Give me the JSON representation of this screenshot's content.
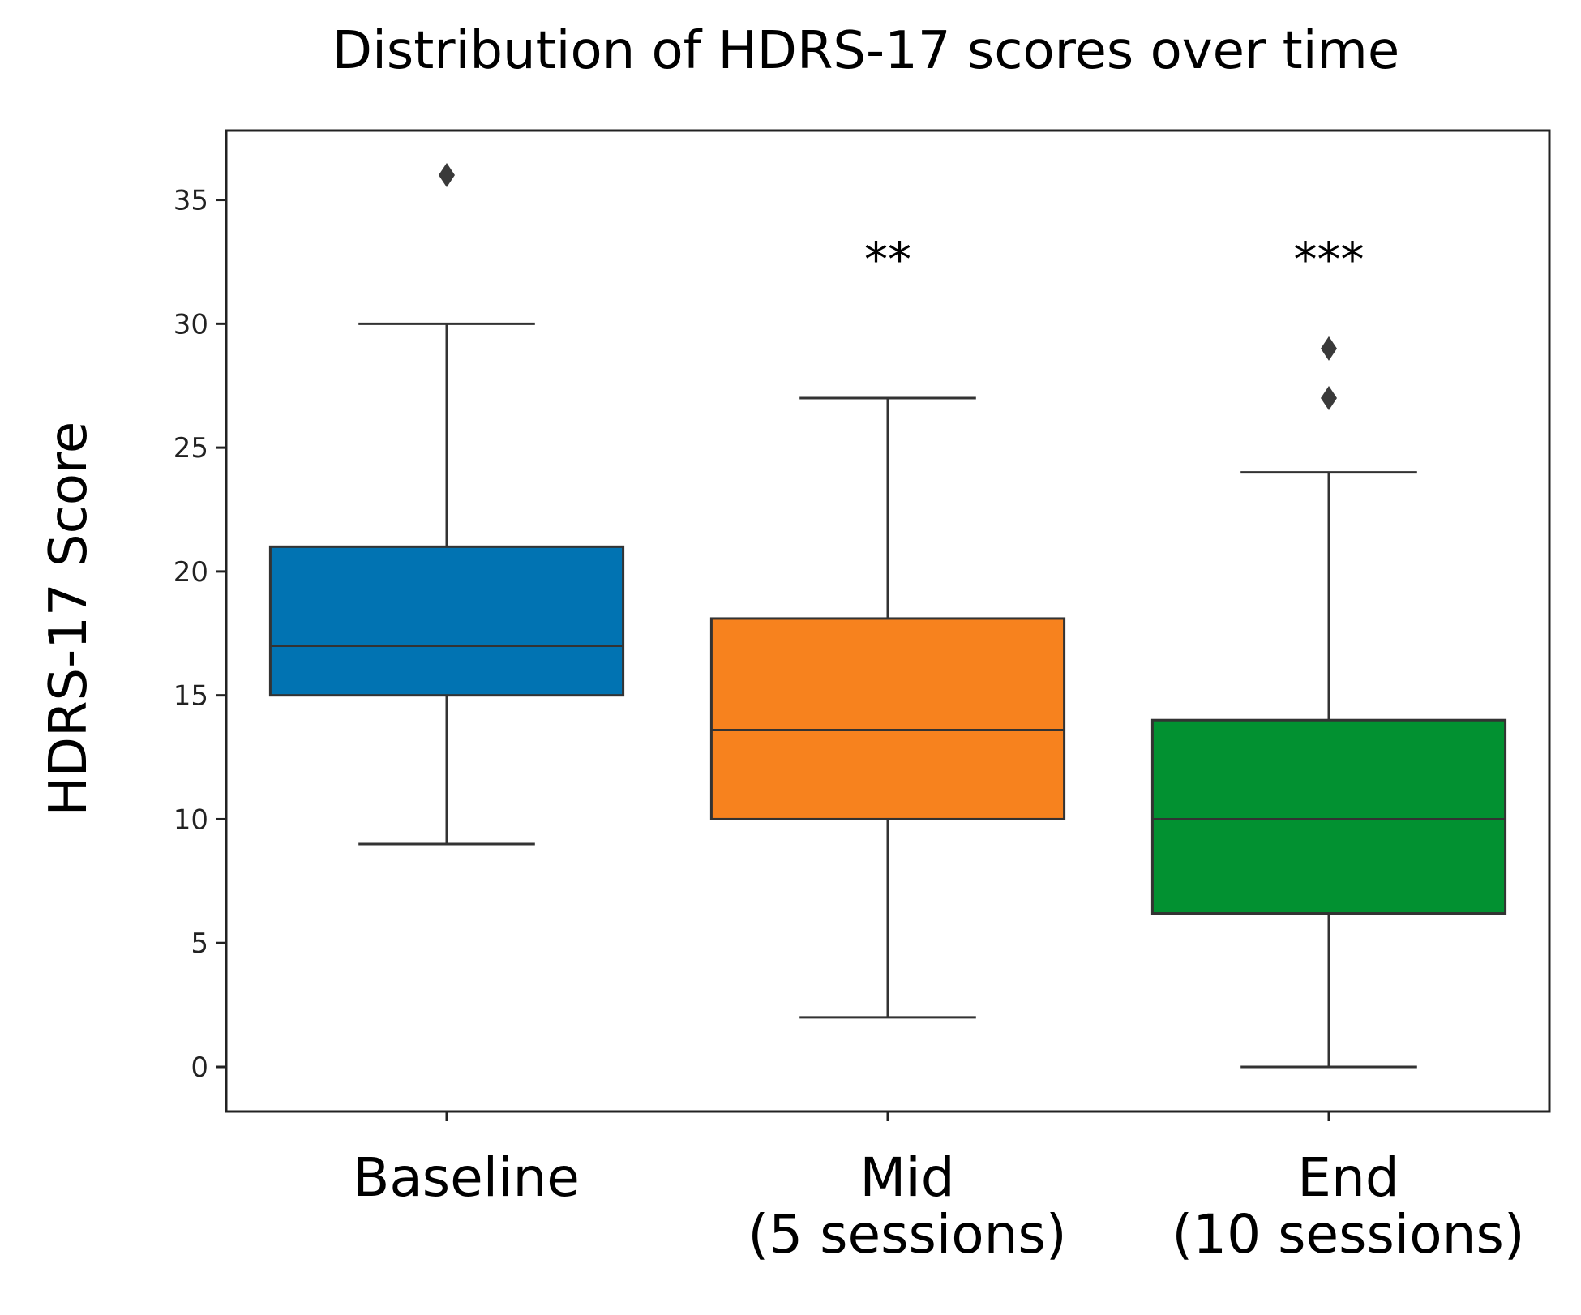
{
  "chart_data": {
    "type": "box",
    "title": "Distribution of HDRS-17 scores over time",
    "ylabel": "HDRS-17 Score",
    "xlabel": "",
    "ylim": [
      -1.8,
      37.8
    ],
    "yticks": [
      0,
      5,
      10,
      15,
      20,
      25,
      30,
      35
    ],
    "categories": [
      {
        "lines": [
          "Baseline"
        ]
      },
      {
        "lines": [
          "Mid",
          "(5 sessions)"
        ]
      },
      {
        "lines": [
          "End",
          "(10 sessions)"
        ]
      }
    ],
    "boxes": [
      {
        "name": "Baseline",
        "color": "#0173b2",
        "whisker_low": 9,
        "q1": 15,
        "median": 17,
        "q3": 21,
        "whisker_high": 30,
        "outliers": [
          36
        ],
        "significance": ""
      },
      {
        "name": "Mid",
        "color": "#f7821e",
        "whisker_low": 2,
        "q1": 10,
        "median": 13.6,
        "q3": 18.1,
        "whisker_high": 27,
        "outliers": [],
        "significance": "**"
      },
      {
        "name": "End",
        "color": "#029131",
        "whisker_low": 0,
        "q1": 6.2,
        "median": 10,
        "q3": 14,
        "whisker_high": 24,
        "outliers": [
          27,
          29
        ],
        "significance": "***"
      }
    ],
    "significance_level": 32.8
  }
}
